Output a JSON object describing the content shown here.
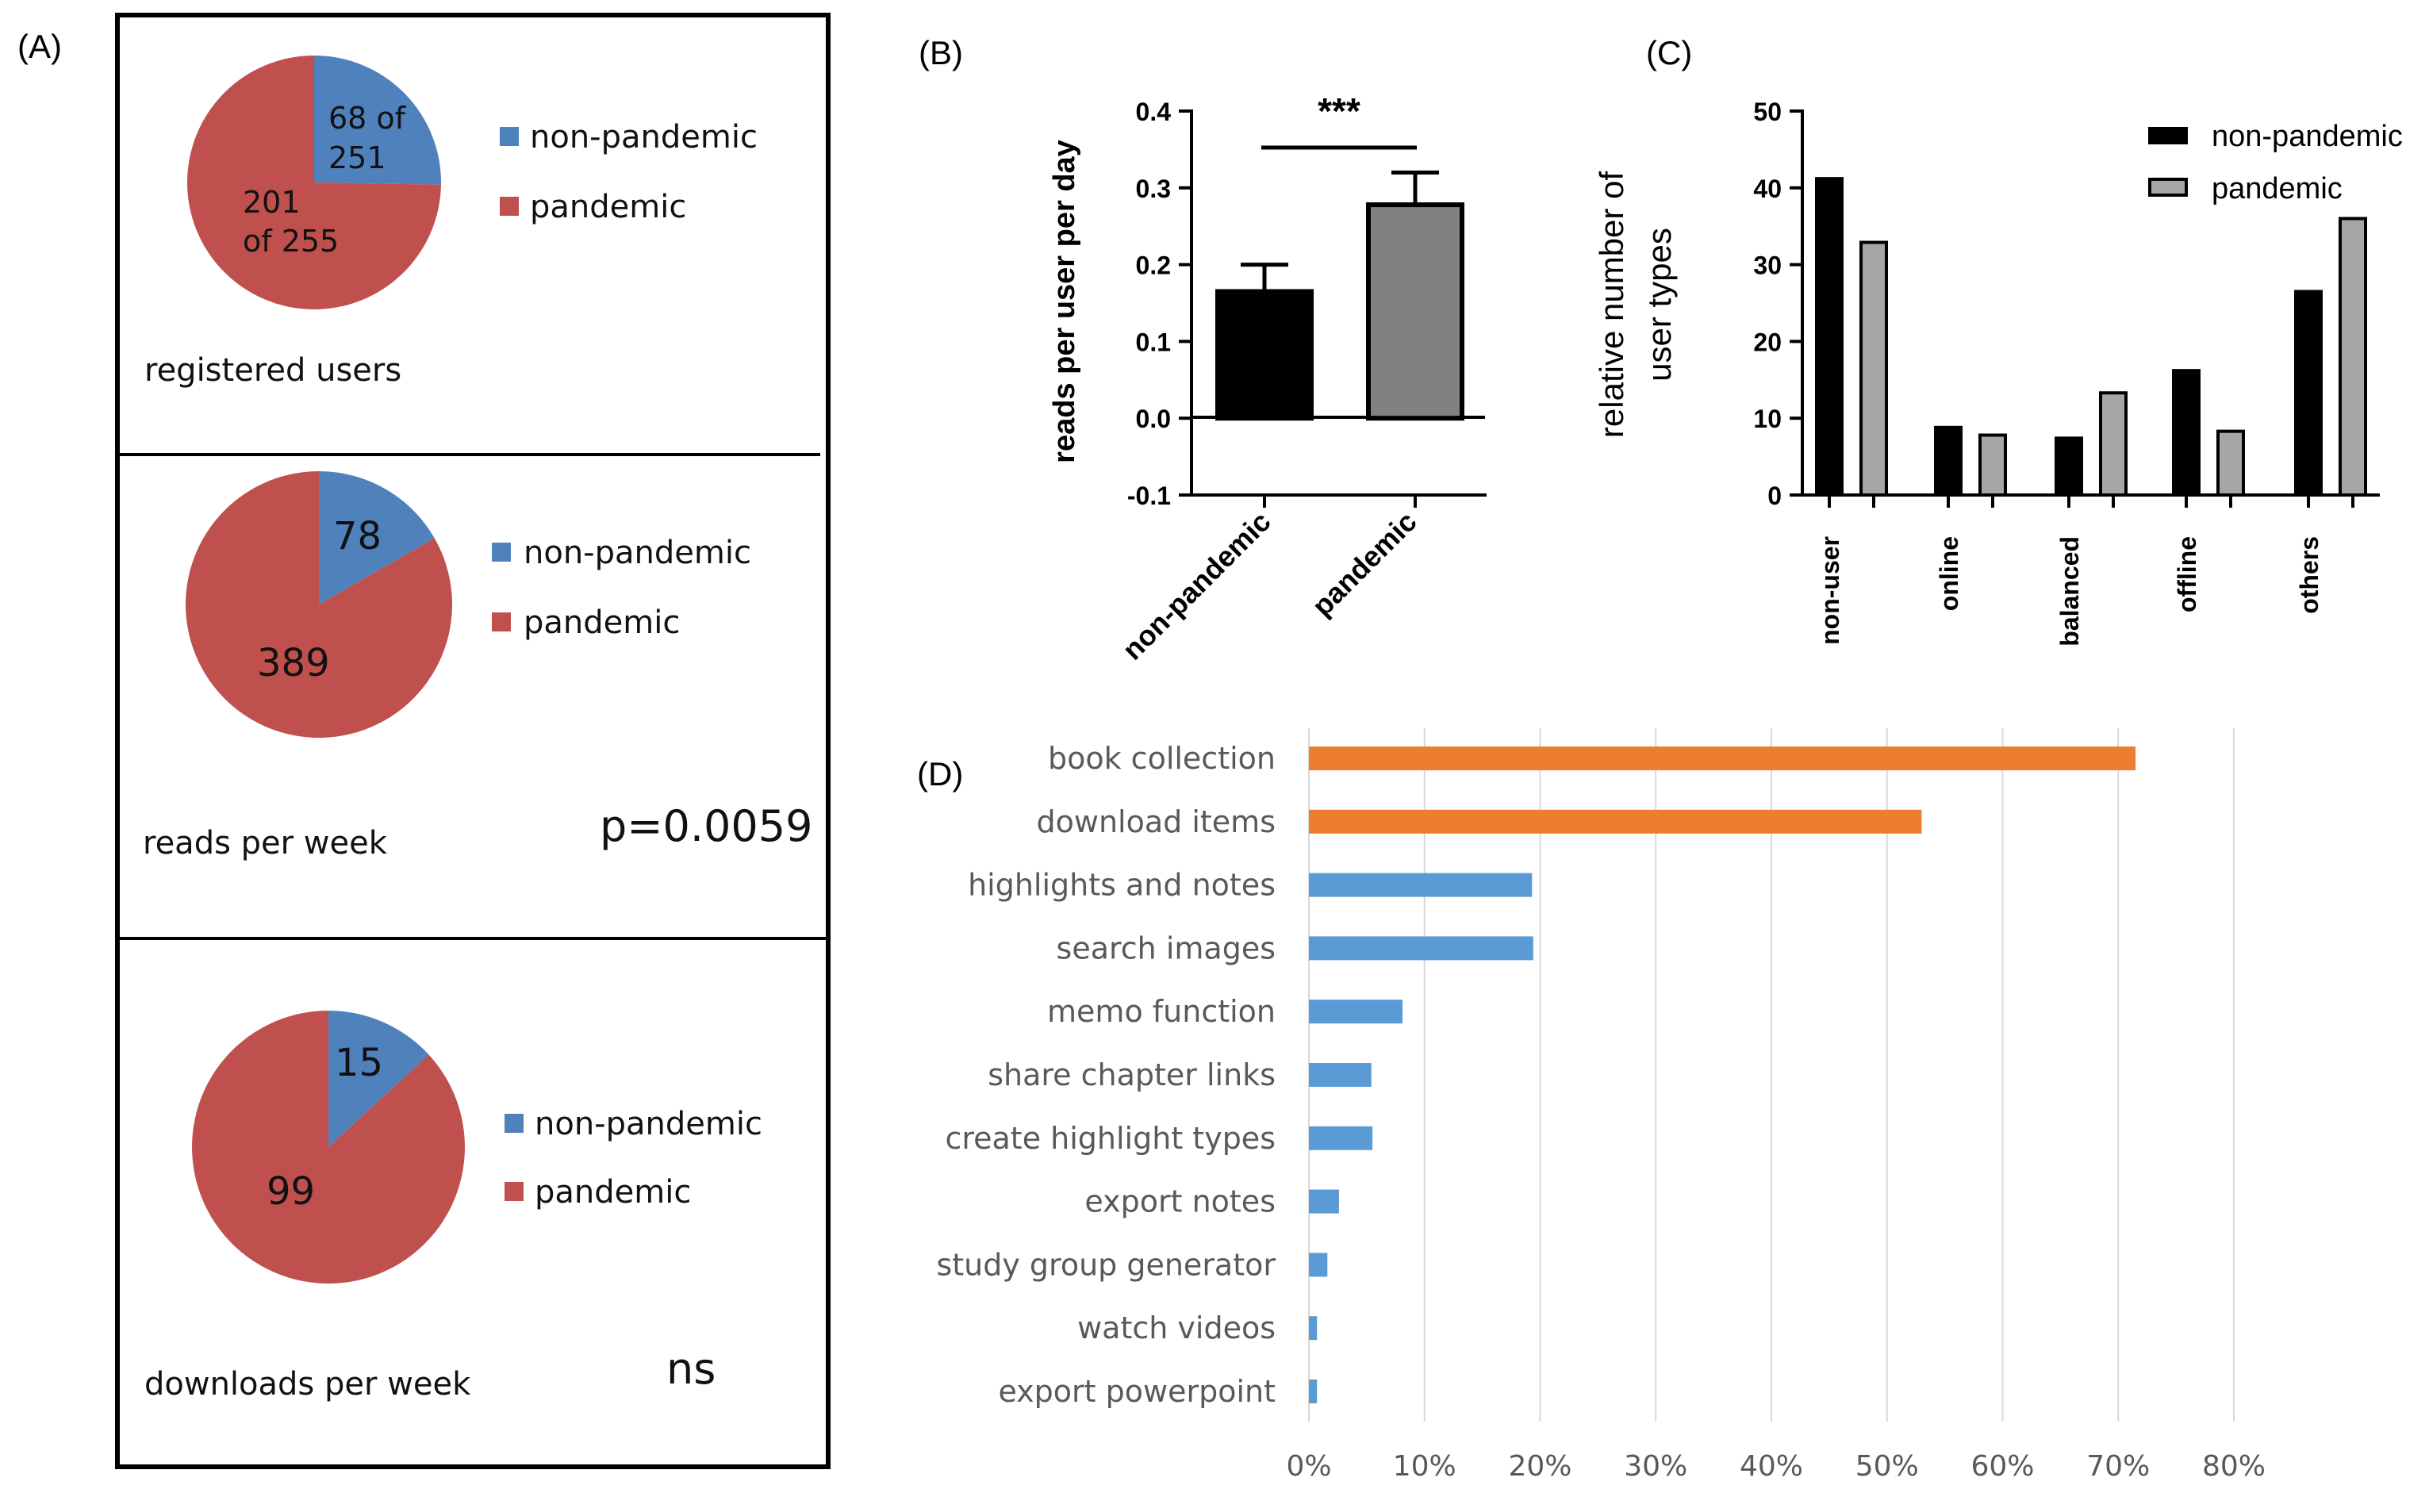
{
  "figure": {
    "panel_labels": [
      "(A)",
      "(B)",
      "(C)",
      "(D)"
    ]
  },
  "chart_data": [
    {
      "type": "pie",
      "panel": "A",
      "title": "registered users",
      "legend": [
        "non-pandemic",
        "pandemic"
      ],
      "slices": [
        {
          "name": "non-pandemic",
          "value": 68,
          "color": "#4F81BD",
          "label": [
            "68 of",
            "251"
          ]
        },
        {
          "name": "pandemic",
          "value": 201,
          "color": "#C0504D",
          "label": [
            "201",
            "of 255"
          ]
        }
      ]
    },
    {
      "type": "pie",
      "panel": "A",
      "title": "reads per week",
      "annotation": "p=0.0059",
      "legend": [
        "non-pandemic",
        "pandemic"
      ],
      "slices": [
        {
          "name": "non-pandemic",
          "value": 78,
          "color": "#4F81BD",
          "label": [
            "78"
          ]
        },
        {
          "name": "pandemic",
          "value": 389,
          "color": "#C0504D",
          "label": [
            "389"
          ]
        }
      ]
    },
    {
      "type": "pie",
      "panel": "A",
      "title": "downloads per week",
      "annotation": "ns",
      "legend": [
        "non-pandemic",
        "pandemic"
      ],
      "slices": [
        {
          "name": "non-pandemic",
          "value": 15,
          "color": "#4F81BD",
          "label": [
            "15"
          ]
        },
        {
          "name": "pandemic",
          "value": 99,
          "color": "#C0504D",
          "label": [
            "99"
          ]
        }
      ]
    },
    {
      "type": "bar",
      "panel": "B",
      "ylabel": "reads per user per day",
      "categories": [
        "non-pandemic",
        "pandemic"
      ],
      "values": [
        0.165,
        0.278
      ],
      "errors": [
        0.035,
        0.042
      ],
      "colors": [
        "#000000",
        "#808080"
      ],
      "ylim": [
        -0.1,
        0.4
      ],
      "yticks": [
        "-0.1",
        "0.0",
        "0.1",
        "0.2",
        "0.3",
        "0.4"
      ],
      "significance": "***"
    },
    {
      "type": "bar",
      "panel": "C",
      "ylabel": [
        "relative number of",
        "user types"
      ],
      "categories": [
        "non-user",
        "online",
        "balanced",
        "offline",
        "others"
      ],
      "series": [
        {
          "name": "non-pandemic",
          "values": [
            41.2,
            8.8,
            7.4,
            16.2,
            26.5
          ],
          "color": "#000000"
        },
        {
          "name": "pandemic",
          "values": [
            32.9,
            7.8,
            13.3,
            8.3,
            36.0
          ],
          "color": "#A6A6A6"
        }
      ],
      "ylim": [
        0,
        50
      ],
      "yticks": [
        "0",
        "10",
        "20",
        "30",
        "40",
        "50"
      ]
    },
    {
      "type": "bar",
      "orientation": "horizontal",
      "panel": "D",
      "categories": [
        "book collection",
        "download items",
        "highlights and notes",
        "search images",
        "memo function",
        "share chapter links",
        "create highlight types",
        "export notes",
        "study group generator",
        "watch videos",
        "export powerpoint"
      ],
      "values": [
        71.5,
        53.0,
        19.3,
        19.4,
        8.1,
        5.4,
        5.5,
        2.6,
        1.6,
        0.7,
        0.7
      ],
      "colors": [
        "#ED7D31",
        "#ED7D31",
        "#5B9BD5",
        "#5B9BD5",
        "#5B9BD5",
        "#5B9BD5",
        "#5B9BD5",
        "#5B9BD5",
        "#5B9BD5",
        "#5B9BD5",
        "#5B9BD5"
      ],
      "xlim": [
        0,
        80
      ],
      "xticks": [
        "0%",
        "10%",
        "20%",
        "30%",
        "40%",
        "50%",
        "60%",
        "70%",
        "80%"
      ],
      "grid": true
    }
  ]
}
